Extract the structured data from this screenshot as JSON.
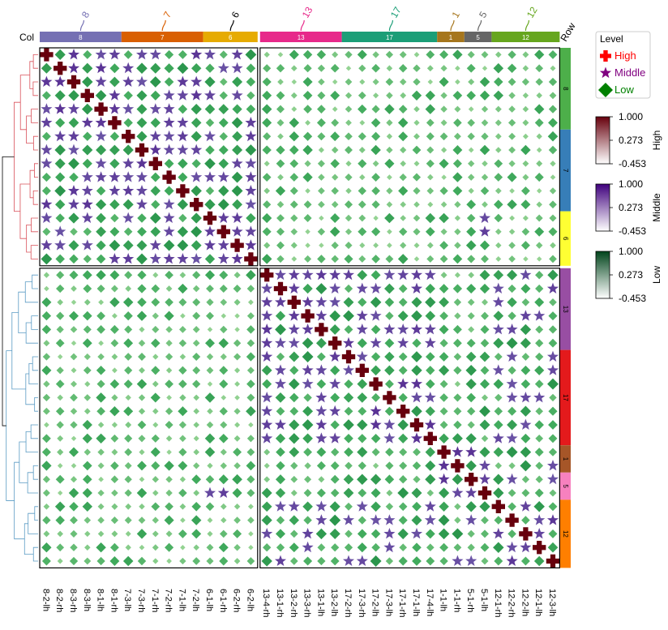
{
  "chart_data": {
    "type": "heatmap",
    "title": "",
    "labels": [
      "8-2-lh",
      "8-2-rh",
      "8-3-rh",
      "8-3-lh",
      "8-1-lh",
      "8-1-rh",
      "7-3-lh",
      "7-3-rh",
      "7-1-rh",
      "7-2-rh",
      "7-1-lh",
      "7-2-lh",
      "6-1-lh",
      "6-1-rh",
      "6-2-rh",
      "6-2-lh",
      "13-4-rh",
      "13-1-rh",
      "13-2-rh",
      "13-3-rh",
      "13-1-lh",
      "13-2-lh",
      "17-2-rh",
      "17-3-rh",
      "17-2-lh",
      "17-3-lh",
      "17-1-rh",
      "17-1-lh",
      "17-4-lh",
      "1-1-lh",
      "1-1-rh",
      "5-1-rh",
      "5-1-lh",
      "12-1-rh",
      "12-2-rh",
      "12-2-lh",
      "12-1-lh",
      "12-3-lh"
    ],
    "col_annotation_title": "Col",
    "row_annotation_title": "Row",
    "col_groups": [
      {
        "name": "8",
        "count": 6,
        "color": "#7570B3"
      },
      {
        "name": "7",
        "count": 6,
        "color": "#D95F02"
      },
      {
        "name": "6",
        "count": 4,
        "color": "#E6AB02"
      },
      {
        "name": "13",
        "count": 6,
        "color": "#E7298A"
      },
      {
        "name": "17",
        "count": 7,
        "color": "#1B9E77"
      },
      {
        "name": "1",
        "count": 2,
        "color": "#A6761D"
      },
      {
        "name": "5",
        "count": 2,
        "color": "#666666"
      },
      {
        "name": "12",
        "count": 5,
        "color": "#66A61E"
      }
    ],
    "row_groups": [
      {
        "name": "8",
        "count": 6,
        "color": "#4DAF4A"
      },
      {
        "name": "7",
        "count": 6,
        "color": "#377EB8"
      },
      {
        "name": "6",
        "count": 4,
        "color": "#FFFF33"
      },
      {
        "name": "13",
        "count": 6,
        "color": "#984EA3"
      },
      {
        "name": "17",
        "count": 7,
        "color": "#E41A1C"
      },
      {
        "name": "1",
        "count": 2,
        "color": "#A65628"
      },
      {
        "name": "5",
        "count": 2,
        "color": "#F781BF"
      },
      {
        "name": "12",
        "count": 5,
        "color": "#FF7F00"
      }
    ],
    "row_split": 16,
    "col_split": 16,
    "level_legend_title": "Level",
    "levels": [
      {
        "name": "High",
        "shape": "cross",
        "color": "#ff0000"
      },
      {
        "name": "Middle",
        "shape": "star",
        "color": "#800080"
      },
      {
        "name": "Low",
        "shape": "diamond",
        "color": "#008000"
      }
    ],
    "color_scales": [
      {
        "name": "High",
        "ticks": [
          "1.000",
          "0.273",
          "-0.453"
        ],
        "range": [
          -0.453,
          1.0
        ],
        "high_color": "#67000d"
      },
      {
        "name": "Middle",
        "ticks": [
          "1.000",
          "0.273",
          "-0.453"
        ],
        "range": [
          -0.453,
          1.0
        ],
        "high_color": "#3f007d"
      },
      {
        "name": "Low",
        "ticks": [
          "1.000",
          "0.273",
          "-0.453"
        ],
        "range": [
          -0.453,
          1.0
        ],
        "high_color": "#00441b"
      }
    ],
    "thresholds": {
      "high": 0.9,
      "middle": 0.55
    }
  }
}
